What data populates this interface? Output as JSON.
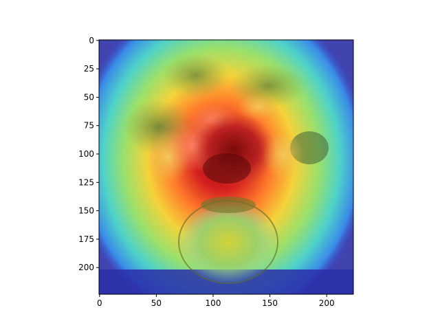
{
  "chart_data": {
    "type": "heatmap",
    "description_kind": "image overlaid with a jet-colormap saliency heatmap",
    "colormap": "jet",
    "overlay_alpha": 0.5,
    "x_ticks": [
      0,
      50,
      100,
      150,
      200
    ],
    "y_ticks": [
      0,
      25,
      50,
      75,
      100,
      125,
      150,
      175,
      200
    ],
    "xlim": [
      -0.5,
      223.5
    ],
    "ylim": [
      223.5,
      -0.5
    ],
    "y_axis_inverted": true,
    "grid": false,
    "legend": "none",
    "peak_location": {
      "x": 120,
      "y": 110
    },
    "peak_value": 1.0,
    "background_value": 0.1,
    "image_subject": "bouquet of flowers in a round glass vase",
    "colors": {
      "low": "#00007f",
      "mid_low": "#0080ff",
      "mid": "#7dff7a",
      "mid_high": "#ffa500",
      "high": "#7f0000"
    }
  }
}
